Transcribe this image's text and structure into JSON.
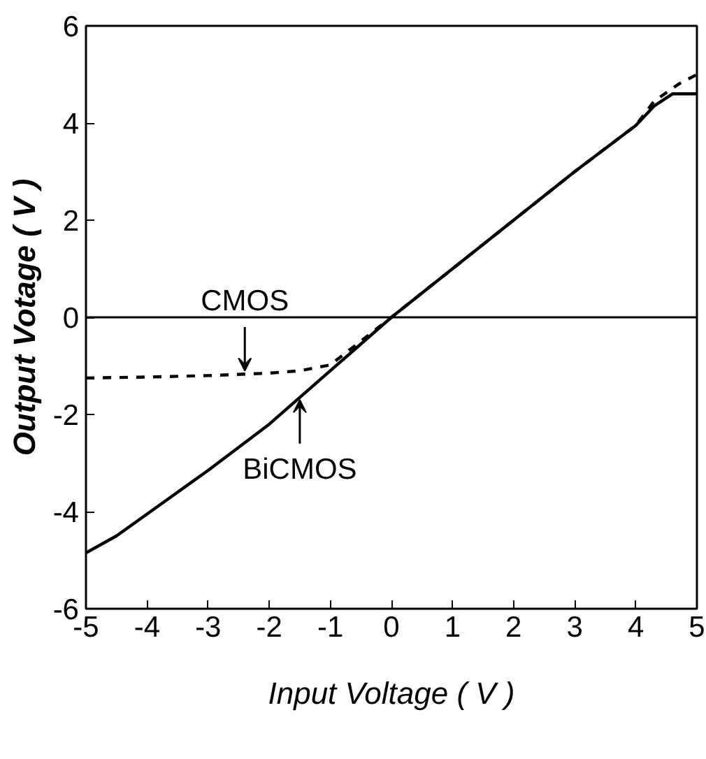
{
  "chart_data": {
    "type": "line",
    "xlabel": "Input Voltage ( V )",
    "ylabel": "Output Votage ( V )",
    "xlim": [
      -5,
      5
    ],
    "ylim": [
      -6,
      6
    ],
    "xticks": [
      -5,
      -4,
      -3,
      -2,
      -1,
      0,
      1,
      2,
      3,
      4,
      5
    ],
    "yticks": [
      -6,
      -4,
      -2,
      0,
      2,
      4,
      6
    ],
    "grid": false,
    "marker": "none",
    "series": [
      {
        "color": "#000000",
        "line_style": "solid",
        "x": [
          -5,
          -4.5,
          -4,
          -3,
          -2,
          -1,
          0,
          1,
          2,
          3,
          4,
          4.3,
          4.6,
          5
        ],
        "values": [
          -4.85,
          -4.5,
          -4.05,
          -3.15,
          -2.2,
          -1.1,
          0,
          1,
          2,
          3,
          3.95,
          4.35,
          4.6,
          4.6
        ]
      },
      {
        "color": "#000000",
        "line_style": "dashed",
        "x": [
          -5,
          -4,
          -3,
          -2,
          -1.5,
          -1,
          0,
          1,
          2,
          3,
          4,
          4.3,
          4.7,
          5
        ],
        "values": [
          -1.25,
          -1.23,
          -1.2,
          -1.15,
          -1.1,
          -0.98,
          0,
          1,
          2,
          3,
          3.95,
          4.45,
          4.8,
          5.0
        ]
      }
    ],
    "ref_lines": [
      {
        "axis": "y",
        "value": 0,
        "color": "#000000",
        "line_style": "solid"
      }
    ],
    "annotations": [
      {
        "text": "CMOS",
        "x": -2.4,
        "y": -1.2
      },
      {
        "text": "BiCMOS",
        "x": -1.5,
        "y": -1.6
      }
    ]
  }
}
